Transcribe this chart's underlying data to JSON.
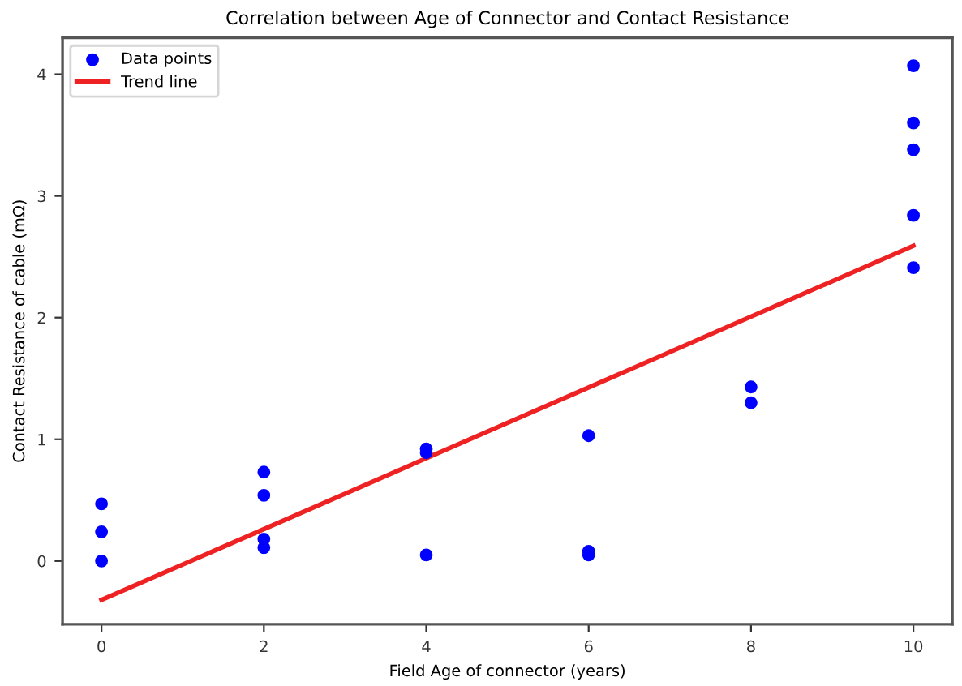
{
  "chart_data": {
    "type": "scatter",
    "title": "Correlation between Age of Connector and Contact Resistance",
    "xlabel": "Field Age of connector (years)",
    "ylabel": "Contact Resistance of cable (mΩ)",
    "series": [
      {
        "name": "Data points",
        "color": "#0000ff",
        "marker": "circle",
        "x": [
          0,
          0,
          0,
          2,
          2,
          2,
          2,
          4,
          4,
          4,
          6,
          6,
          6,
          8,
          8,
          10,
          10,
          10,
          10,
          10
        ],
        "values": [
          0.47,
          0.24,
          0.0,
          0.73,
          0.54,
          0.18,
          0.11,
          0.92,
          0.89,
          0.05,
          1.03,
          0.08,
          0.05,
          1.43,
          1.3,
          4.07,
          3.6,
          3.38,
          2.84,
          2.41
        ]
      },
      {
        "name": "Trend line",
        "type": "line",
        "color": "#ee2222",
        "line_style": "solid",
        "x": [
          0,
          10
        ],
        "values": [
          -0.32,
          2.59
        ]
      }
    ],
    "xlim": [
      -0.48,
      10.48
    ],
    "ylim": [
      -0.52,
      4.3
    ],
    "xticks": [
      0,
      2,
      4,
      6,
      8,
      10
    ],
    "yticks": [
      0,
      1,
      2,
      3,
      4
    ],
    "grid": false,
    "legend": "top left"
  }
}
